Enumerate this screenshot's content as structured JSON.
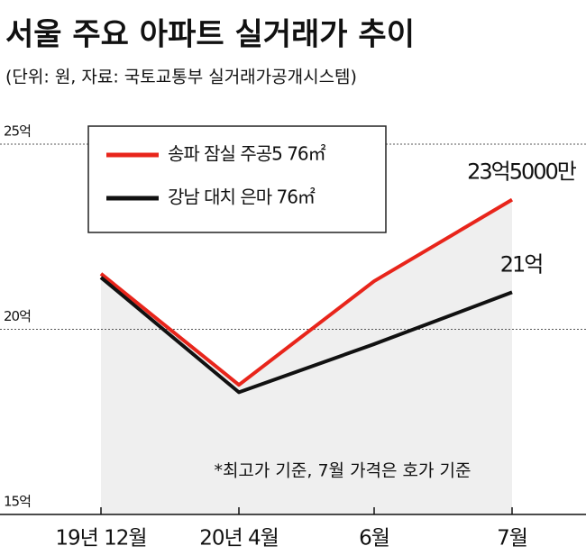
{
  "chart_data": {
    "type": "line",
    "title": "서울 주요 아파트 실거래가 추이",
    "subtitle": "(단위: 원, 자료: 국토교통부 실거래가공개시스템)",
    "annotation": "*최고가 기준, 7월 가격은 호가 기준",
    "categories": [
      "19년 12월",
      "20년 4월",
      "6월",
      "7월"
    ],
    "series": [
      {
        "name": "송파 잠실 주공5 76㎡",
        "color": "#e8251b",
        "values": [
          21.5,
          18.5,
          21.3,
          23.5
        ],
        "value_labels": [
          null,
          null,
          null,
          "23억5000만"
        ]
      },
      {
        "name": "강남 대치 은마 76㎡",
        "color": "#111111",
        "values": [
          21.4,
          18.3,
          19.6,
          21
        ],
        "value_labels": [
          null,
          null,
          null,
          "21억"
        ]
      }
    ],
    "ylim": [
      15,
      25
    ],
    "yticks": [
      {
        "value": 15,
        "label": "15억"
      },
      {
        "value": 20,
        "label": "20억"
      },
      {
        "value": 25,
        "label": "25억"
      }
    ],
    "grid": true
  }
}
